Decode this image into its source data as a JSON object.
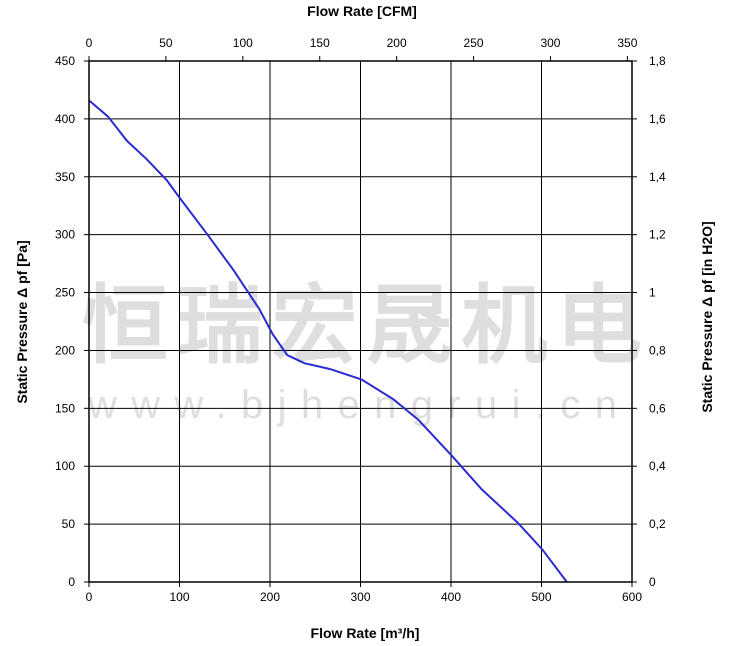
{
  "chart_data": {
    "type": "line",
    "xlabel": "Flow Rate [m³/h]",
    "ylabel": "Static Pressure Δ pf [Pa]",
    "x2label": "Flow Rate [CFM]",
    "y2label": "Static Pressure Δ pf [in H2O]",
    "xlim": [
      0,
      600
    ],
    "ylim": [
      0,
      450
    ],
    "x2lim": [
      0,
      353
    ],
    "y2lim": [
      0,
      1.8
    ],
    "xticks": [
      "0",
      "100",
      "200",
      "300",
      "400",
      "500",
      "600"
    ],
    "yticks": [
      "0",
      "50",
      "100",
      "150",
      "200",
      "250",
      "300",
      "350",
      "400",
      "450"
    ],
    "x2ticks": [
      "0",
      "50",
      "100",
      "150",
      "200",
      "250",
      "300",
      "350"
    ],
    "y2ticks": [
      "0",
      "0,2",
      "0,4",
      "0,6",
      "0,8",
      "1",
      "1,2",
      "1,4",
      "1,6",
      "1,8"
    ],
    "grid": true,
    "series": [
      {
        "color": "#2b2bd0",
        "x": [
          0,
          21,
          42,
          64,
          86,
          100,
          131,
          160,
          188,
          203,
          219,
          238,
          266,
          301,
          336,
          364,
          401,
          434,
          474,
          501,
          528
        ],
        "y": [
          416,
          402,
          381,
          365,
          347,
          332,
          300,
          269,
          236,
          214,
          196,
          189,
          184,
          175,
          158,
          140,
          109,
          80,
          51,
          28,
          0
        ]
      }
    ],
    "watermark": {
      "line1": "恒瑞宏晟机电",
      "line2": "www.bjhengrui.cn"
    }
  }
}
